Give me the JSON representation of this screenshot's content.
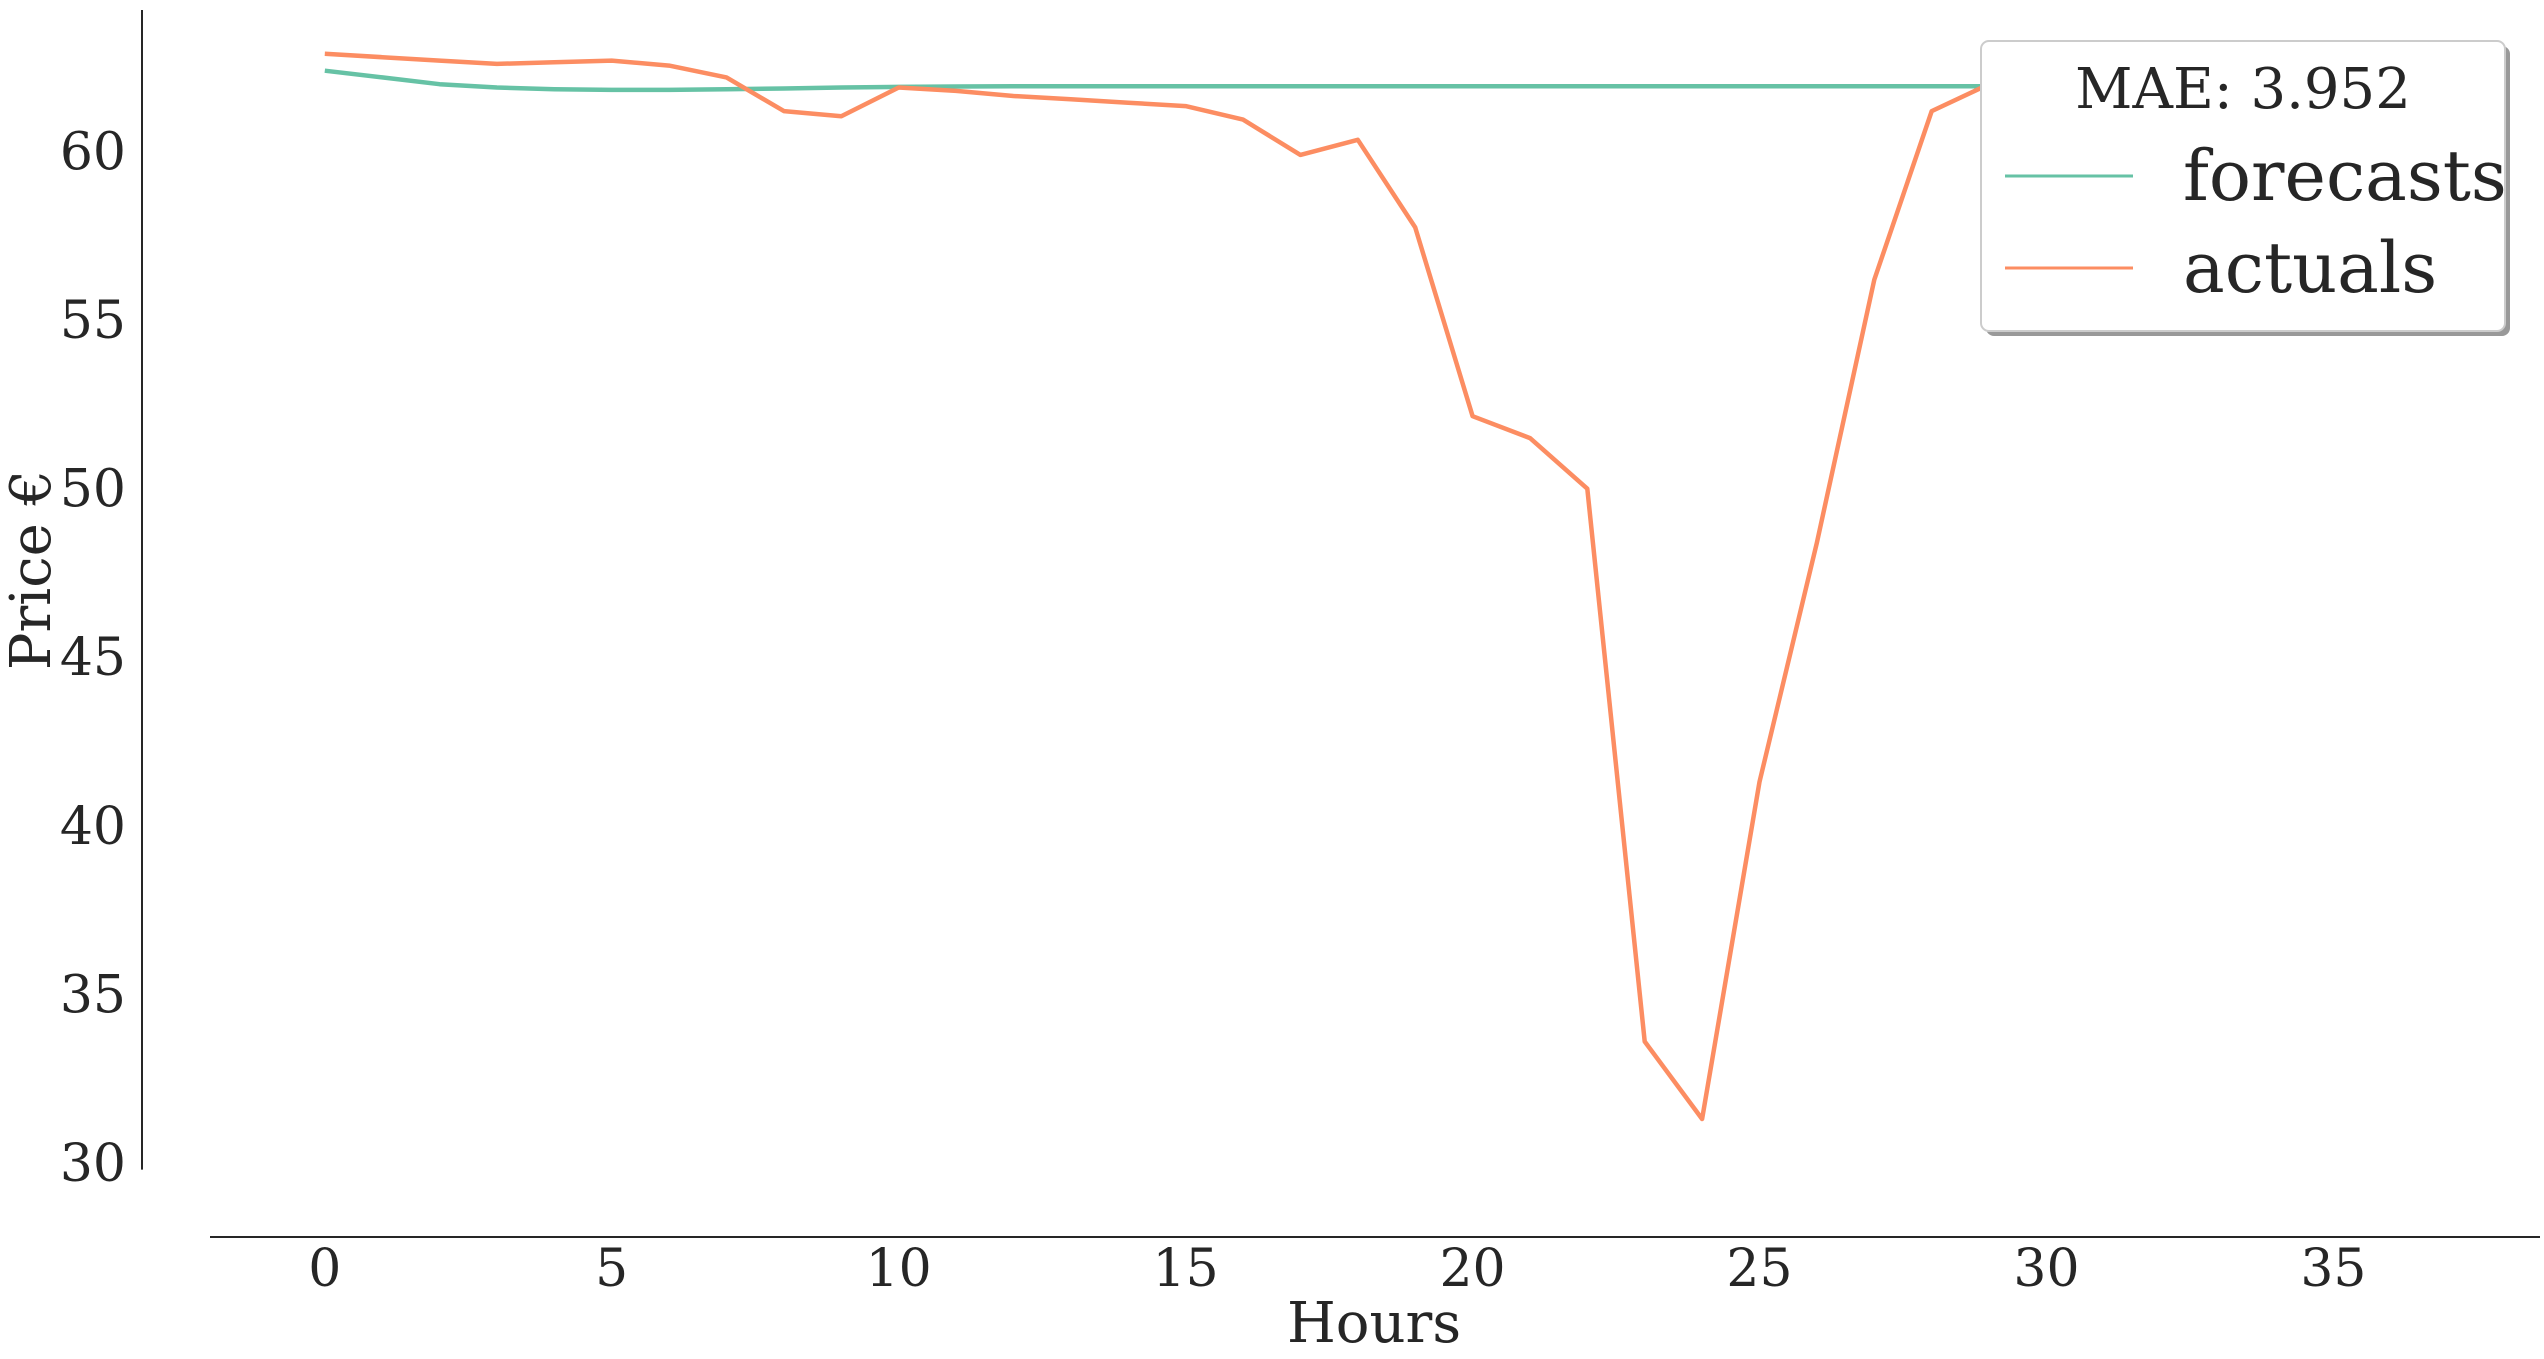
{
  "chart_data": {
    "type": "line",
    "title": "",
    "xlabel": "Hours",
    "ylabel": "Price €",
    "xlim": [
      -2,
      38.6
    ],
    "ylim": [
      27.8,
      64.2
    ],
    "xticks": [
      0,
      5,
      10,
      15,
      20,
      25,
      30,
      35
    ],
    "yticks": [
      30,
      35,
      40,
      45,
      50,
      55,
      60
    ],
    "grid": false,
    "legend": {
      "title": "MAE: 3.952",
      "placement": "top-right"
    },
    "x": [
      0,
      1,
      2,
      3,
      4,
      5,
      6,
      7,
      8,
      9,
      10,
      11,
      12,
      13,
      14,
      15,
      16,
      17,
      18,
      19,
      20,
      21,
      22,
      23,
      24,
      25,
      26,
      27,
      28,
      29,
      30,
      31,
      32,
      33,
      34,
      35,
      36,
      37
    ],
    "series": [
      {
        "name": "forecasts",
        "color": "#66c2a5",
        "values": [
          62.4,
          62.2,
          62.0,
          61.9,
          61.85,
          61.83,
          61.83,
          61.85,
          61.87,
          61.9,
          61.92,
          61.93,
          61.94,
          61.94,
          61.94,
          61.94,
          61.94,
          61.94,
          61.94,
          61.94,
          61.94,
          61.94,
          61.94,
          61.94,
          61.94,
          61.94,
          61.94,
          61.94,
          61.94,
          61.94,
          61.94,
          61.94,
          61.94,
          61.94,
          61.94,
          61.94,
          61.94,
          61.94
        ]
      },
      {
        "name": "actuals",
        "color": "#fc8d62",
        "values": [
          62.9,
          62.8,
          62.7,
          62.6,
          62.65,
          62.7,
          62.55,
          62.2,
          61.2,
          61.05,
          61.9,
          61.8,
          61.65,
          61.55,
          61.45,
          61.35,
          60.95,
          59.9,
          60.35,
          57.75,
          52.15,
          51.5,
          50.0,
          33.6,
          31.3,
          41.3,
          48.4,
          56.2,
          61.2,
          62.0,
          62.0,
          62.0,
          62.0,
          62.0,
          62.0,
          62.0,
          62.0,
          62.0
        ]
      }
    ]
  }
}
